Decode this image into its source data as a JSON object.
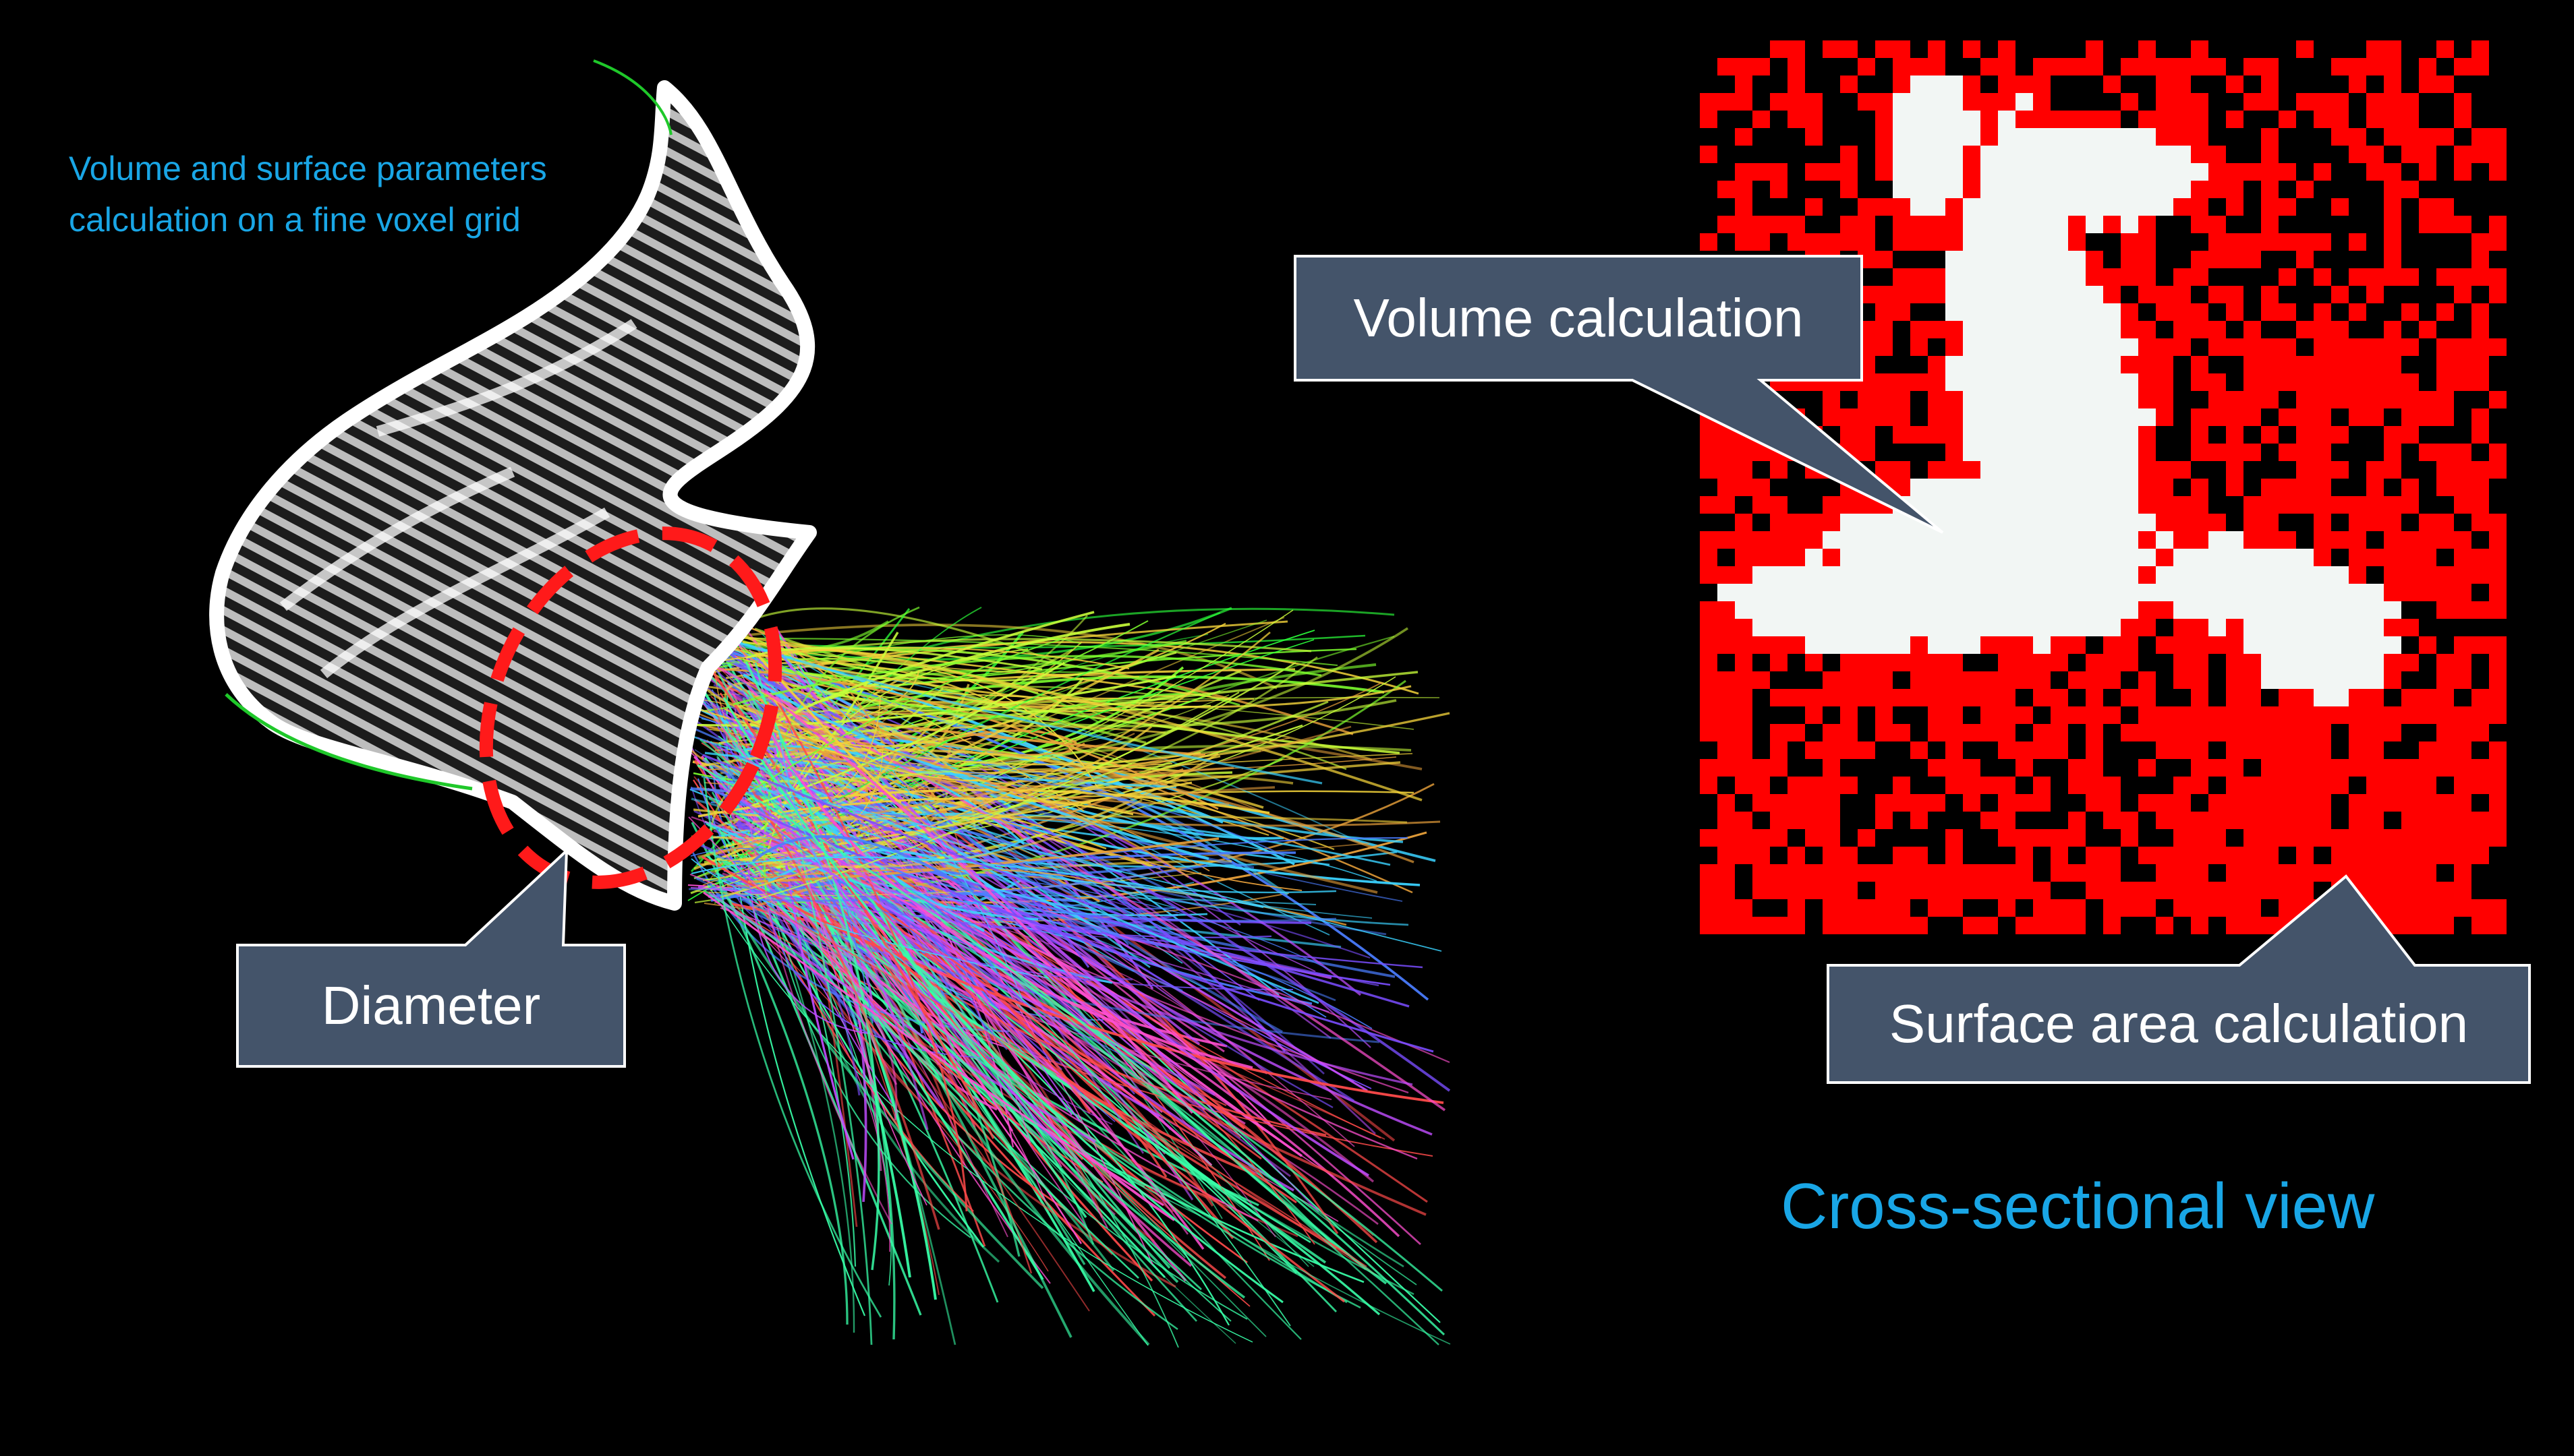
{
  "caption": {
    "line1": "Volume and surface parameters",
    "line2": "calculation on a fine voxel grid"
  },
  "callouts": {
    "volume": "Volume calculation",
    "surface": "Surface area calculation",
    "diameter": "Diameter"
  },
  "cross_section_title": "Cross-sectional view",
  "colors": {
    "background": "#000000",
    "caption": "#19a6e6",
    "callout_fill": "#44546a",
    "callout_border": "#ffffff",
    "boundary_voxel": "#ff0000",
    "interior_voxel": "#f2f6f4",
    "diameter_marker": "#ff1a1a"
  }
}
